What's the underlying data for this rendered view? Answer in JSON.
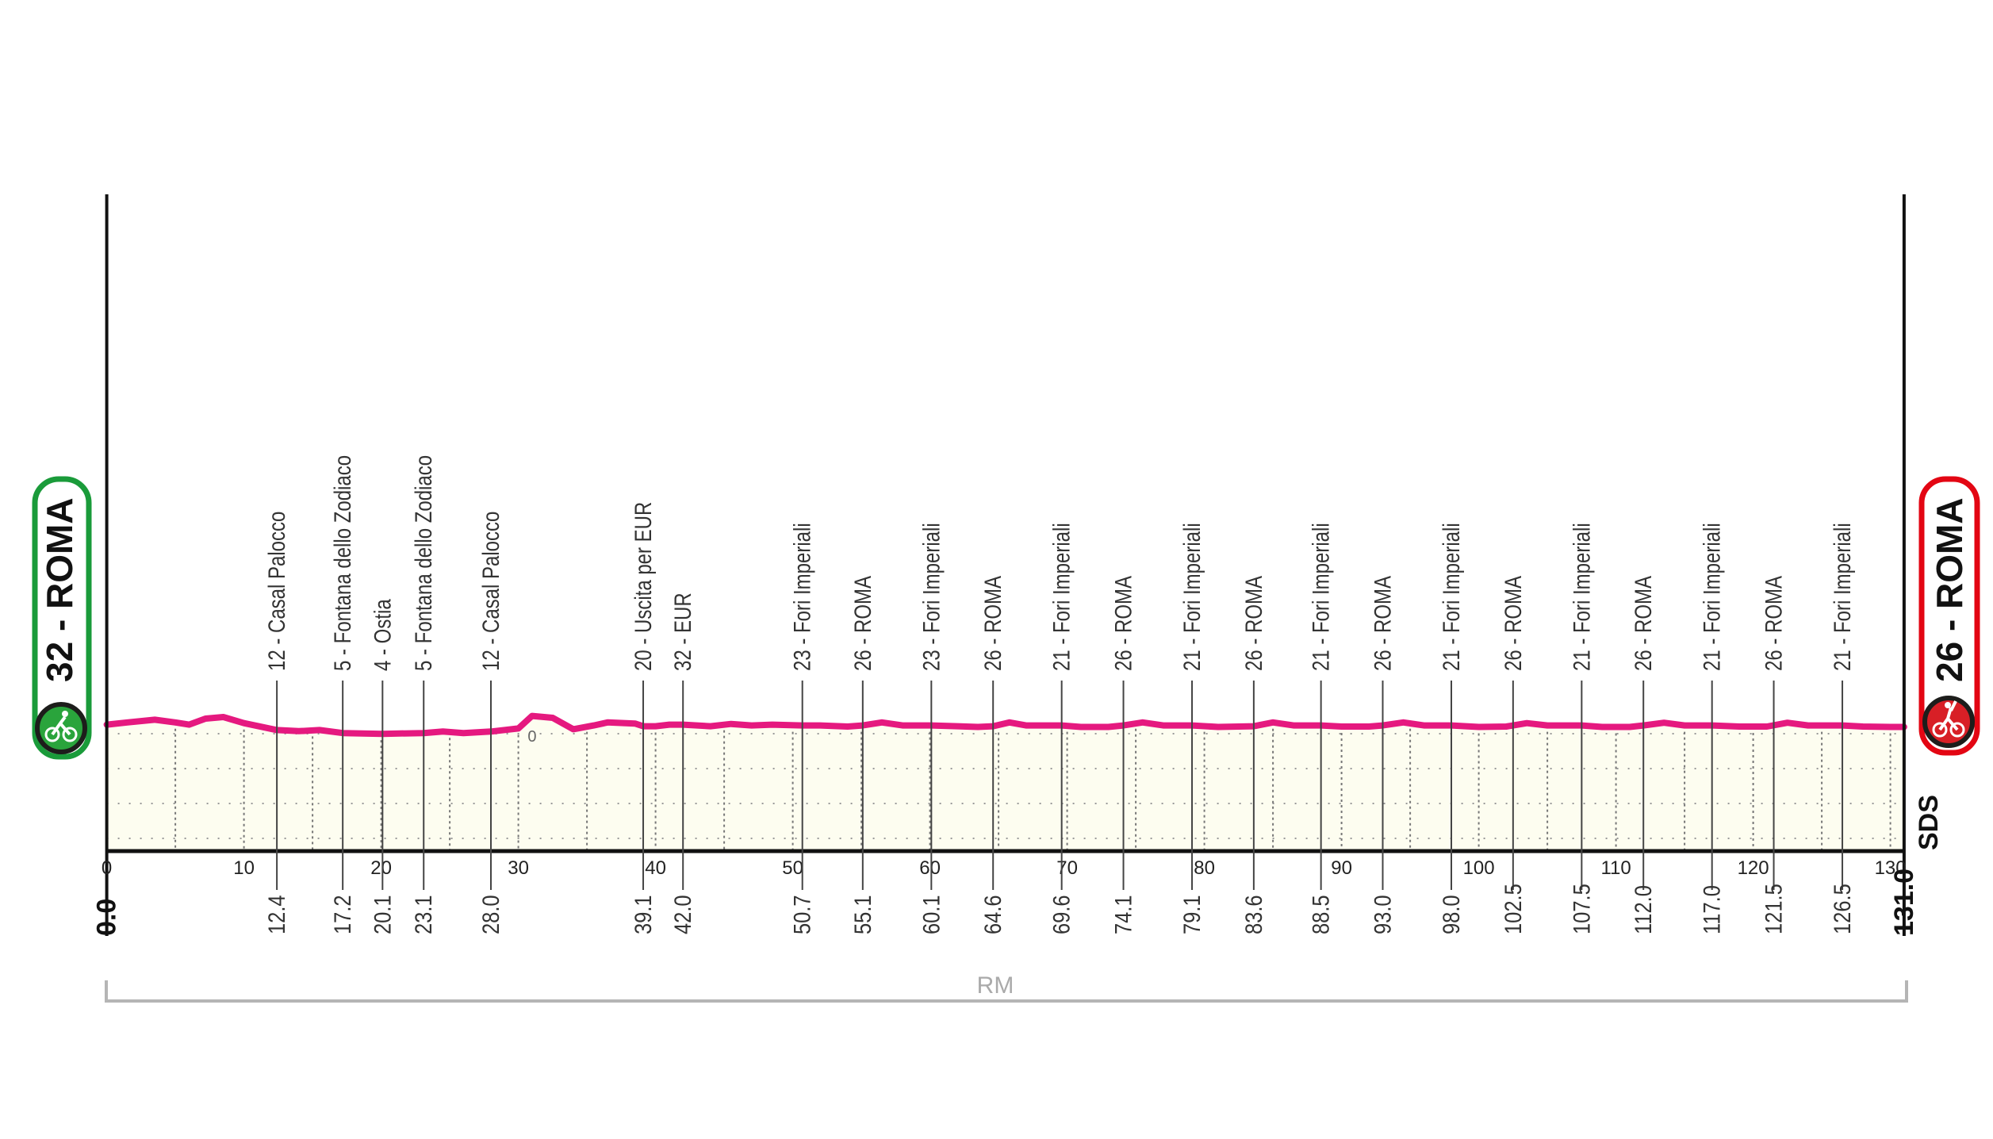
{
  "chart_data": {
    "type": "area",
    "xlabel": "",
    "ylabel": "",
    "xlim": [
      0,
      131
    ],
    "x_ticks": [
      0,
      10,
      20,
      30,
      40,
      50,
      60,
      70,
      80,
      90,
      100,
      110,
      120,
      130
    ],
    "grid": true,
    "colors": {
      "profile": "#e5197f",
      "fill": "#fdfdf0",
      "start": "#1a9b3a",
      "finish": "#e30613"
    },
    "start": {
      "label": "32 - ROMA",
      "km": "0.0",
      "icon": "cyclist-start-icon"
    },
    "finish": {
      "label": "26 - ROMA",
      "km": "131.0",
      "icon": "cyclist-finish-icon"
    },
    "checkpoints": [
      {
        "km": 12.4,
        "km_label": "12.4",
        "label": "12 - Casal Palocco"
      },
      {
        "km": 17.2,
        "km_label": "17.2",
        "label": "5 - Fontana dello Zodiaco"
      },
      {
        "km": 20.1,
        "km_label": "20.1",
        "label": "4 - Ostia"
      },
      {
        "km": 23.1,
        "km_label": "23.1",
        "label": "5 - Fontana dello Zodiaco"
      },
      {
        "km": 28.0,
        "km_label": "28.0",
        "label": "12 - Casal Palocco"
      },
      {
        "km": 39.1,
        "km_label": "39.1",
        "label": "20 - Uscita per EUR"
      },
      {
        "km": 42.0,
        "km_label": "42.0",
        "label": "32 - EUR"
      },
      {
        "km": 50.7,
        "km_label": "50.7",
        "label": "23 - Fori Imperiali"
      },
      {
        "km": 55.1,
        "km_label": "55.1",
        "label": "26 - ROMA"
      },
      {
        "km": 60.1,
        "km_label": "60.1",
        "label": "23 - Fori Imperiali"
      },
      {
        "km": 64.6,
        "km_label": "64.6",
        "label": "26 - ROMA"
      },
      {
        "km": 69.6,
        "km_label": "69.6",
        "label": "21 - Fori Imperiali"
      },
      {
        "km": 74.1,
        "km_label": "74.1",
        "label": "26 - ROMA"
      },
      {
        "km": 79.1,
        "km_label": "79.1",
        "label": "21 - Fori Imperiali"
      },
      {
        "km": 83.6,
        "km_label": "83.6",
        "label": "26 - ROMA"
      },
      {
        "km": 88.5,
        "km_label": "88.5",
        "label": "21 - Fori Imperiali"
      },
      {
        "km": 93.0,
        "km_label": "93.0",
        "label": "26 - ROMA"
      },
      {
        "km": 98.0,
        "km_label": "98.0",
        "label": "21 - Fori Imperiali"
      },
      {
        "km": 102.5,
        "km_label": "102.5",
        "label": "26 - ROMA"
      },
      {
        "km": 107.5,
        "km_label": "107.5",
        "label": "21 - Fori Imperiali"
      },
      {
        "km": 112.0,
        "km_label": "112.0",
        "label": "26 - ROMA"
      },
      {
        "km": 117.0,
        "km_label": "117.0",
        "label": "21 - Fori Imperiali"
      },
      {
        "km": 121.5,
        "km_label": "121.5",
        "label": "26 - ROMA"
      },
      {
        "km": 126.5,
        "km_label": "126.5",
        "label": "21 - Fori Imperiali"
      }
    ],
    "profile": [
      [
        0,
        32
      ],
      [
        1.5,
        38
      ],
      [
        3.5,
        45
      ],
      [
        5,
        38
      ],
      [
        6,
        32
      ],
      [
        7.2,
        48
      ],
      [
        8.5,
        52
      ],
      [
        10,
        36
      ],
      [
        12.4,
        18
      ],
      [
        14,
        15
      ],
      [
        15.5,
        18
      ],
      [
        17.2,
        10
      ],
      [
        20.1,
        8
      ],
      [
        23.1,
        10
      ],
      [
        24.5,
        14
      ],
      [
        26,
        10
      ],
      [
        28,
        14
      ],
      [
        30,
        22
      ],
      [
        31,
        55
      ],
      [
        32.5,
        50
      ],
      [
        34,
        20
      ],
      [
        35.5,
        30
      ],
      [
        36.5,
        38
      ],
      [
        38.5,
        35
      ],
      [
        39.1,
        28
      ],
      [
        40,
        28
      ],
      [
        41,
        32
      ],
      [
        42,
        32
      ],
      [
        44,
        28
      ],
      [
        45.5,
        34
      ],
      [
        47,
        30
      ],
      [
        48.5,
        32
      ],
      [
        50.7,
        30
      ],
      [
        52,
        30
      ],
      [
        54,
        27
      ],
      [
        55.1,
        30
      ],
      [
        56.5,
        38
      ],
      [
        58,
        30
      ],
      [
        60.1,
        30
      ],
      [
        62,
        28
      ],
      [
        63.5,
        26
      ],
      [
        64.6,
        28
      ],
      [
        65.8,
        38
      ],
      [
        67,
        30
      ],
      [
        69.6,
        30
      ],
      [
        71,
        26
      ],
      [
        73,
        26
      ],
      [
        74.1,
        30
      ],
      [
        75.5,
        38
      ],
      [
        77,
        30
      ],
      [
        79.1,
        30
      ],
      [
        81,
        26
      ],
      [
        83.6,
        28
      ],
      [
        85,
        38
      ],
      [
        86.5,
        30
      ],
      [
        88.5,
        30
      ],
      [
        90,
        27
      ],
      [
        92,
        27
      ],
      [
        93,
        30
      ],
      [
        94.5,
        38
      ],
      [
        96,
        30
      ],
      [
        98,
        30
      ],
      [
        100,
        26
      ],
      [
        102,
        27
      ],
      [
        103.5,
        36
      ],
      [
        105,
        30
      ],
      [
        107.5,
        30
      ],
      [
        109,
        26
      ],
      [
        111,
        26
      ],
      [
        112,
        30
      ],
      [
        113.5,
        37
      ],
      [
        115,
        30
      ],
      [
        117,
        30
      ],
      [
        119,
        27
      ],
      [
        121,
        27
      ],
      [
        122.5,
        37
      ],
      [
        124,
        30
      ],
      [
        126.5,
        30
      ],
      [
        128,
        27
      ],
      [
        130,
        26
      ],
      [
        131,
        26
      ]
    ],
    "summit_marker": {
      "km": 31,
      "label": "0"
    },
    "province": "RM",
    "logo": "SDS"
  }
}
